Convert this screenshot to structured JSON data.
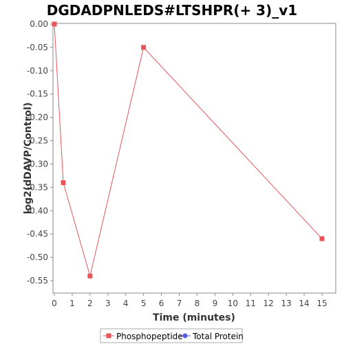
{
  "chart_data": {
    "type": "line",
    "title": "DGDADPNLEDS#LTSHPR(+ 3)_v1",
    "xlabel": "Time (minutes)",
    "ylabel": "log2(dDAVP/Control)",
    "xlim": [
      0,
      15.6
    ],
    "ylim": [
      -0.57,
      0.0
    ],
    "xticks": [
      "0",
      "1",
      "2",
      "3",
      "4",
      "5",
      "6",
      "7",
      "8",
      "9",
      "10",
      "11",
      "12",
      "13",
      "14",
      "15"
    ],
    "yticks": [
      "0.00",
      "-0.05",
      "-0.10",
      "-0.15",
      "-0.20",
      "-0.25",
      "-0.30",
      "-0.35",
      "-0.40",
      "-0.45",
      "-0.50",
      "-0.55"
    ],
    "legend_position": "bottom",
    "grid": false,
    "series": [
      {
        "name": "Phosphopeptide",
        "color": "#e8545a",
        "marker": "square",
        "x": [
          0,
          0.5,
          2,
          5,
          15
        ],
        "y": [
          0.0,
          -0.34,
          -0.54,
          -0.05,
          -0.46
        ]
      },
      {
        "name": "Total Protein",
        "color": "#5a5ae8",
        "marker": "circle",
        "x": [],
        "y": []
      }
    ]
  }
}
